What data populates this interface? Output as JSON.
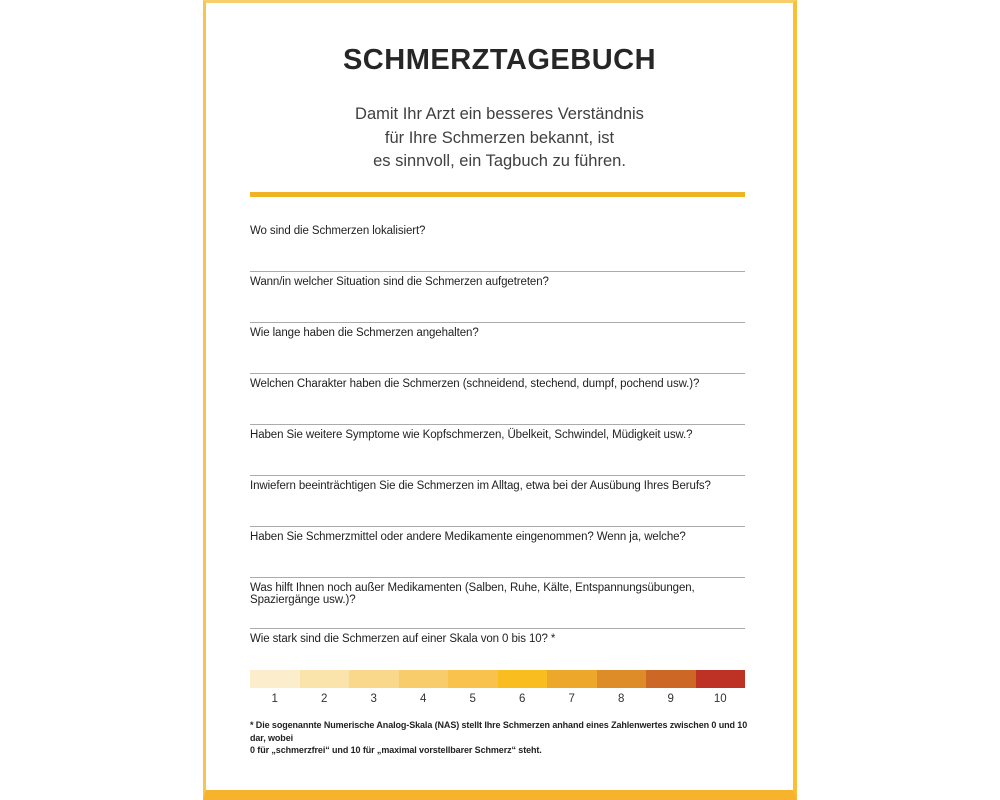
{
  "page": {
    "title": "SCHMERZTAGEBUCH",
    "subtitle_lines": [
      "Damit Ihr Arzt ein besseres Verständnis",
      "für Ihre Schmerzen bekannt, ist",
      "es sinnvoll, ein Tagbuch zu führen."
    ],
    "accent_color": "#EFB424",
    "border_color": "#F6C44F",
    "bottom_bar_color": "#F6B32B"
  },
  "questions": [
    "Wo sind die Schmerzen lokalisiert?",
    "Wann/in welcher Situation sind die Schmerzen aufgetreten?",
    "Wie lange haben die Schmerzen angehalten?",
    "Welchen Charakter haben die Schmerzen (schneidend, stechend, dumpf, pochend usw.)?",
    "Haben Sie weitere Symptome wie Kopfschmerzen, Übelkeit, Schwindel, Müdigkeit usw.?",
    "Inwiefern beeinträchtigen Sie die Schmerzen im Alltag, etwa bei der Ausübung Ihres Berufs?",
    "Haben Sie Schmerzmittel oder andere Medikamente eingenommen? Wenn ja, welche?",
    "Was hilft Ihnen noch außer Medikamenten (Salben, Ruhe, Kälte, Entspannungsübungen, Spaziergänge usw.)?",
    "Wie stark sind die Schmerzen auf einer Skala von 0 bis 10? *"
  ],
  "pain_scale": {
    "min": 0,
    "max": 10,
    "segments": [
      {
        "label": "1",
        "color": "#FCEECC"
      },
      {
        "label": "2",
        "color": "#FBE3AC"
      },
      {
        "label": "3",
        "color": "#FAD88B"
      },
      {
        "label": "4",
        "color": "#F9CC6B"
      },
      {
        "label": "5",
        "color": "#F9C24C"
      },
      {
        "label": "6",
        "color": "#FABD20"
      },
      {
        "label": "7",
        "color": "#EDA82B"
      },
      {
        "label": "8",
        "color": "#DE8C27"
      },
      {
        "label": "9",
        "color": "#CD6726"
      },
      {
        "label": "10",
        "color": "#BE3226"
      }
    ]
  },
  "footnote": {
    "line1": "* Die sogenannte Numerische Analog-Skala (NAS) stellt Ihre Schmerzen anhand eines Zahlenwertes zwischen 0 und 10 dar, wobei",
    "line2": "0 für „schmerzfrei“ und 10 für „maximal vorstellbarer Schmerz“ steht."
  }
}
